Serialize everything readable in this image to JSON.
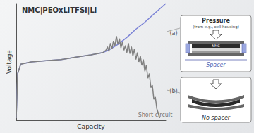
{
  "chart_data": {
    "type": "line",
    "title": "NMC|PEOxLiTFSI|Li",
    "x_label": "Capacity",
    "y_label": "Voltage",
    "xlim": [
      0,
      100
    ],
    "ylim": [
      0,
      100
    ],
    "tick_labels": false,
    "grid": false,
    "series": [
      {
        "name": "(a)",
        "color": "#7b83d6",
        "x": [
          0,
          1,
          3,
          10,
          20,
          30,
          40,
          50,
          58,
          63,
          68,
          74,
          80,
          86,
          92,
          100
        ],
        "values": [
          2,
          40,
          48,
          50,
          51,
          52,
          54,
          56,
          58,
          61,
          65,
          71,
          78,
          84,
          91,
          100
        ]
      },
      {
        "name": "(b)",
        "color": "#808080",
        "x": [
          0,
          1,
          3,
          10,
          20,
          30,
          40,
          50,
          58,
          60,
          61,
          62,
          63,
          64,
          65,
          66,
          67,
          68,
          69,
          70,
          71,
          72,
          73,
          74,
          75,
          76,
          77,
          78,
          79,
          80,
          81,
          82,
          83,
          84,
          85,
          86,
          87,
          88,
          89,
          90,
          91,
          92,
          93,
          94,
          95,
          96
        ],
        "values": [
          2,
          40,
          48,
          50,
          51,
          52,
          54,
          56,
          58,
          60,
          63,
          59,
          66,
          61,
          68,
          64,
          72,
          65,
          70,
          62,
          67,
          60,
          64,
          58,
          66,
          57,
          63,
          55,
          61,
          52,
          58,
          50,
          55,
          47,
          52,
          42,
          47,
          36,
          40,
          28,
          30,
          18,
          20,
          10,
          6,
          2
        ]
      }
    ],
    "annotations": [
      "Short circuit"
    ],
    "insets": [
      {
        "label": "(a)",
        "pressure": "Pressure",
        "pressure_note": "(from e.g., cell housing)",
        "electrode": "NMC",
        "spacer": "Spacer"
      },
      {
        "label": "(b)",
        "spacer": "No spacer"
      }
    ]
  }
}
